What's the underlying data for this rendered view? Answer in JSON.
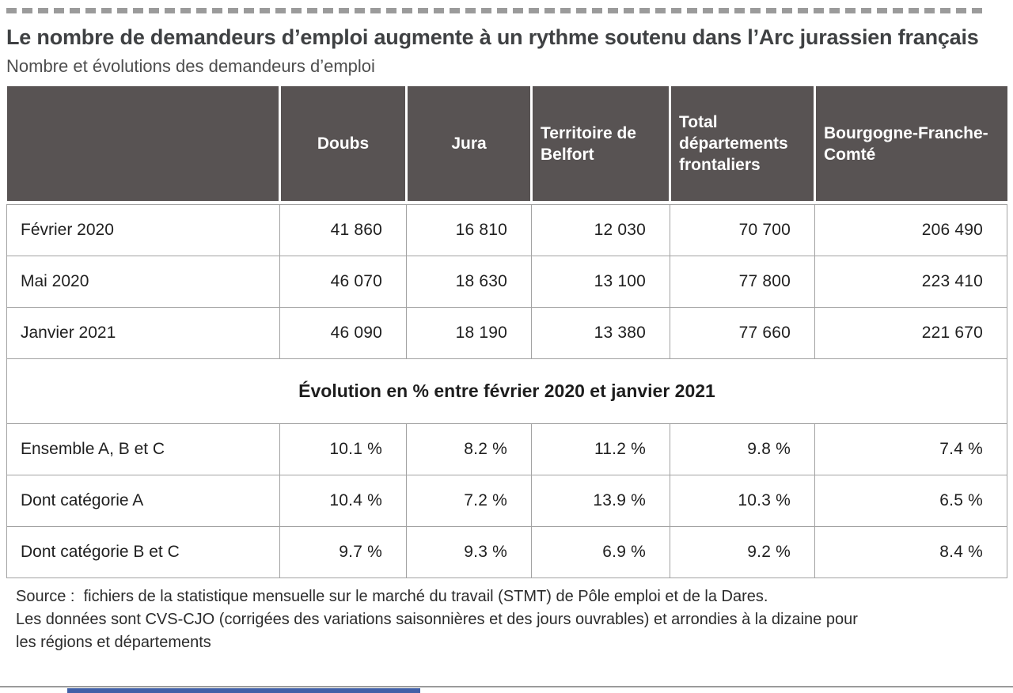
{
  "page": {
    "title": "Le nombre de demandeurs d’emploi augmente à un rythme soutenu dans l’Arc jurassien français",
    "subtitle": "Nombre et évolutions des demandeurs d’emploi"
  },
  "table": {
    "columns": [
      "",
      "Doubs",
      "Jura",
      "Territoire de Belfort",
      "Total départements frontaliers",
      "Bourgogne-Franche-Comté"
    ],
    "counts_rows": [
      {
        "label": "Février 2020",
        "values": [
          "41 860",
          "16 810",
          "12 030",
          "70 700",
          "206 490"
        ]
      },
      {
        "label": "Mai 2020",
        "values": [
          "46 070",
          "18 630",
          "13 100",
          "77 800",
          "223 410"
        ]
      },
      {
        "label": "Janvier 2021",
        "values": [
          "46 090",
          "18 190",
          "13 380",
          "77 660",
          "221 670"
        ]
      }
    ],
    "section_header": "Évolution en % entre février 2020 et janvier 2021",
    "evolution_rows": [
      {
        "label": "Ensemble A, B et C",
        "values": [
          "10.1 %",
          "8.2 %",
          "11.2 %",
          "9.8 %",
          "7.4 %"
        ]
      },
      {
        "label": "Dont catégorie A",
        "values": [
          "10.4 %",
          "7.2 %",
          "13.9 %",
          "10.3 %",
          "6.5 %"
        ]
      },
      {
        "label": "Dont catégorie B et C",
        "values": [
          "9.7 %",
          "9.3 %",
          "6.9 %",
          "9.2 %",
          "8.4 %"
        ]
      }
    ]
  },
  "footer": {
    "line1": "Source :  fichiers de la statistique mensuelle sur le marché du travail (STMT) de Pôle emploi et de la Dares.",
    "line2": "Les données sont CVS-CJO (corrigées des variations saisonnières et des jours ouvrables) et arrondies à la dizaine pour",
    "line3": "les régions et départements"
  },
  "colors": {
    "header_bg": "#585353",
    "accent_blue": "#4160a7",
    "border_gray": "#a3a3a3",
    "dash_gray": "#9b9b9b",
    "title_text": "#3f4143"
  }
}
